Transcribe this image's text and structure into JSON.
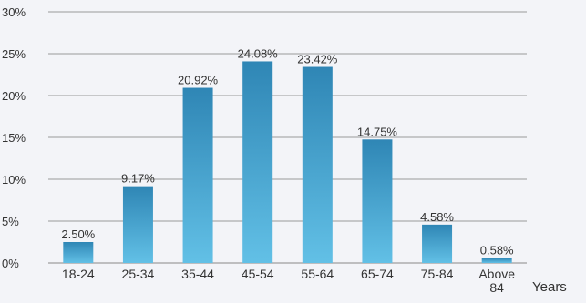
{
  "chart_data": {
    "type": "bar",
    "title": "",
    "xlabel": "Years",
    "ylabel": "",
    "categories": [
      "18-24",
      "25-34",
      "35-44",
      "45-54",
      "55-64",
      "65-74",
      "75-84",
      "Above 84"
    ],
    "values": [
      2.5,
      9.17,
      20.92,
      24.08,
      23.42,
      14.75,
      4.58,
      0.58
    ],
    "data_labels": [
      "2.50%",
      "9.17%",
      "20.92%",
      "24.08%",
      "23.42%",
      "14.75%",
      "4.58%",
      "0.58%"
    ],
    "ylim": [
      0,
      30
    ],
    "yticks": [
      0,
      5,
      10,
      15,
      20,
      25,
      30
    ],
    "ytick_labels": [
      "0%",
      "5%",
      "10%",
      "15%",
      "20%",
      "25%",
      "30%"
    ],
    "grid": true,
    "legend": "none",
    "colors": {
      "bar_top": "#2f86b5",
      "bar_bottom": "#62c0e6",
      "background": "#f3f4f8"
    }
  }
}
